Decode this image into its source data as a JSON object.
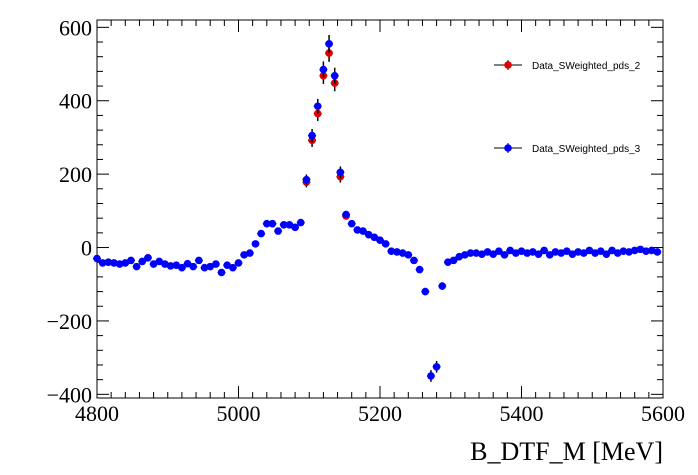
{
  "chart_data": {
    "type": "scatter",
    "xlabel": "B_DTF_M [MeV]",
    "ylabel": "",
    "xlim": [
      4800,
      5600
    ],
    "ylim": [
      -410,
      620
    ],
    "x_ticks": [
      4800,
      5000,
      5200,
      5400,
      5600
    ],
    "y_ticks": [
      -400,
      -200,
      0,
      200,
      400,
      600
    ],
    "grid": false,
    "legend_position": "top-right",
    "series": [
      {
        "name": "Data_SWeighted_pds_2",
        "color": "#e00000",
        "points": [
          {
            "x": 5096,
            "y": 178,
            "err": 14
          },
          {
            "x": 5104,
            "y": 292,
            "err": 18
          },
          {
            "x": 5112,
            "y": 365,
            "err": 20
          },
          {
            "x": 5120,
            "y": 468,
            "err": 22
          },
          {
            "x": 5128,
            "y": 530,
            "err": 24
          },
          {
            "x": 5136,
            "y": 448,
            "err": 22
          },
          {
            "x": 5144,
            "y": 193,
            "err": 16
          },
          {
            "x": 5152,
            "y": 86,
            "err": 10
          }
        ]
      },
      {
        "name": "Data_SWeighted_pds_3",
        "color": "#0000ff",
        "points": [
          {
            "x": 4800,
            "y": -30,
            "err": 6
          },
          {
            "x": 4808,
            "y": -42,
            "err": 6
          },
          {
            "x": 4816,
            "y": -40,
            "err": 6
          },
          {
            "x": 4824,
            "y": -42,
            "err": 6
          },
          {
            "x": 4832,
            "y": -45,
            "err": 6
          },
          {
            "x": 4840,
            "y": -42,
            "err": 6
          },
          {
            "x": 4848,
            "y": -35,
            "err": 6
          },
          {
            "x": 4856,
            "y": -52,
            "err": 6
          },
          {
            "x": 4864,
            "y": -38,
            "err": 6
          },
          {
            "x": 4872,
            "y": -28,
            "err": 6
          },
          {
            "x": 4880,
            "y": -45,
            "err": 6
          },
          {
            "x": 4888,
            "y": -38,
            "err": 6
          },
          {
            "x": 4896,
            "y": -45,
            "err": 6
          },
          {
            "x": 4904,
            "y": -50,
            "err": 6
          },
          {
            "x": 4912,
            "y": -48,
            "err": 6
          },
          {
            "x": 4920,
            "y": -55,
            "err": 6
          },
          {
            "x": 4928,
            "y": -44,
            "err": 6
          },
          {
            "x": 4936,
            "y": -52,
            "err": 6
          },
          {
            "x": 4944,
            "y": -35,
            "err": 6
          },
          {
            "x": 4952,
            "y": -55,
            "err": 6
          },
          {
            "x": 4960,
            "y": -52,
            "err": 6
          },
          {
            "x": 4968,
            "y": -45,
            "err": 6
          },
          {
            "x": 4976,
            "y": -68,
            "err": 7
          },
          {
            "x": 4984,
            "y": -48,
            "err": 6
          },
          {
            "x": 4992,
            "y": -55,
            "err": 6
          },
          {
            "x": 5000,
            "y": -42,
            "err": 6
          },
          {
            "x": 5008,
            "y": -20,
            "err": 6
          },
          {
            "x": 5016,
            "y": -15,
            "err": 6
          },
          {
            "x": 5024,
            "y": 10,
            "err": 7
          },
          {
            "x": 5032,
            "y": 38,
            "err": 7
          },
          {
            "x": 5040,
            "y": 65,
            "err": 8
          },
          {
            "x": 5048,
            "y": 65,
            "err": 8
          },
          {
            "x": 5056,
            "y": 45,
            "err": 8
          },
          {
            "x": 5064,
            "y": 62,
            "err": 8
          },
          {
            "x": 5072,
            "y": 62,
            "err": 8
          },
          {
            "x": 5080,
            "y": 55,
            "err": 8
          },
          {
            "x": 5088,
            "y": 68,
            "err": 9
          },
          {
            "x": 5096,
            "y": 185,
            "err": 14
          },
          {
            "x": 5104,
            "y": 305,
            "err": 18
          },
          {
            "x": 5112,
            "y": 385,
            "err": 20
          },
          {
            "x": 5120,
            "y": 485,
            "err": 22
          },
          {
            "x": 5128,
            "y": 555,
            "err": 24
          },
          {
            "x": 5136,
            "y": 468,
            "err": 22
          },
          {
            "x": 5144,
            "y": 205,
            "err": 16
          },
          {
            "x": 5152,
            "y": 90,
            "err": 10
          },
          {
            "x": 5160,
            "y": 65,
            "err": 9
          },
          {
            "x": 5168,
            "y": 48,
            "err": 8
          },
          {
            "x": 5176,
            "y": 45,
            "err": 7
          },
          {
            "x": 5184,
            "y": 35,
            "err": 7
          },
          {
            "x": 5192,
            "y": 28,
            "err": 7
          },
          {
            "x": 5200,
            "y": 20,
            "err": 7
          },
          {
            "x": 5208,
            "y": 10,
            "err": 6
          },
          {
            "x": 5216,
            "y": -10,
            "err": 6
          },
          {
            "x": 5224,
            "y": -12,
            "err": 6
          },
          {
            "x": 5232,
            "y": -15,
            "err": 6
          },
          {
            "x": 5240,
            "y": -20,
            "err": 6
          },
          {
            "x": 5248,
            "y": -35,
            "err": 7
          },
          {
            "x": 5256,
            "y": -60,
            "err": 8
          },
          {
            "x": 5264,
            "y": -120,
            "err": 10
          },
          {
            "x": 5272,
            "y": -350,
            "err": 16
          },
          {
            "x": 5280,
            "y": -325,
            "err": 16
          },
          {
            "x": 5288,
            "y": -105,
            "err": 10
          },
          {
            "x": 5296,
            "y": -40,
            "err": 7
          },
          {
            "x": 5304,
            "y": -35,
            "err": 6
          },
          {
            "x": 5312,
            "y": -25,
            "err": 6
          },
          {
            "x": 5320,
            "y": -20,
            "err": 6
          },
          {
            "x": 5328,
            "y": -15,
            "err": 6
          },
          {
            "x": 5336,
            "y": -15,
            "err": 6
          },
          {
            "x": 5344,
            "y": -18,
            "err": 6
          },
          {
            "x": 5352,
            "y": -12,
            "err": 6
          },
          {
            "x": 5360,
            "y": -18,
            "err": 6
          },
          {
            "x": 5368,
            "y": -10,
            "err": 6
          },
          {
            "x": 5376,
            "y": -20,
            "err": 6
          },
          {
            "x": 5384,
            "y": -8,
            "err": 6
          },
          {
            "x": 5392,
            "y": -15,
            "err": 6
          },
          {
            "x": 5400,
            "y": -10,
            "err": 6
          },
          {
            "x": 5408,
            "y": -15,
            "err": 6
          },
          {
            "x": 5416,
            "y": -12,
            "err": 6
          },
          {
            "x": 5424,
            "y": -18,
            "err": 6
          },
          {
            "x": 5432,
            "y": -8,
            "err": 6
          },
          {
            "x": 5440,
            "y": -20,
            "err": 6
          },
          {
            "x": 5448,
            "y": -12,
            "err": 6
          },
          {
            "x": 5456,
            "y": -15,
            "err": 6
          },
          {
            "x": 5464,
            "y": -10,
            "err": 6
          },
          {
            "x": 5472,
            "y": -18,
            "err": 6
          },
          {
            "x": 5480,
            "y": -12,
            "err": 6
          },
          {
            "x": 5488,
            "y": -15,
            "err": 6
          },
          {
            "x": 5496,
            "y": -8,
            "err": 6
          },
          {
            "x": 5504,
            "y": -15,
            "err": 6
          },
          {
            "x": 5512,
            "y": -10,
            "err": 6
          },
          {
            "x": 5520,
            "y": -18,
            "err": 6
          },
          {
            "x": 5528,
            "y": -8,
            "err": 6
          },
          {
            "x": 5536,
            "y": -15,
            "err": 6
          },
          {
            "x": 5544,
            "y": -10,
            "err": 6
          },
          {
            "x": 5552,
            "y": -12,
            "err": 6
          },
          {
            "x": 5560,
            "y": -8,
            "err": 6
          },
          {
            "x": 5568,
            "y": -5,
            "err": 6
          },
          {
            "x": 5576,
            "y": -10,
            "err": 6
          },
          {
            "x": 5584,
            "y": -8,
            "err": 6
          },
          {
            "x": 5592,
            "y": -12,
            "err": 6
          }
        ]
      }
    ]
  }
}
